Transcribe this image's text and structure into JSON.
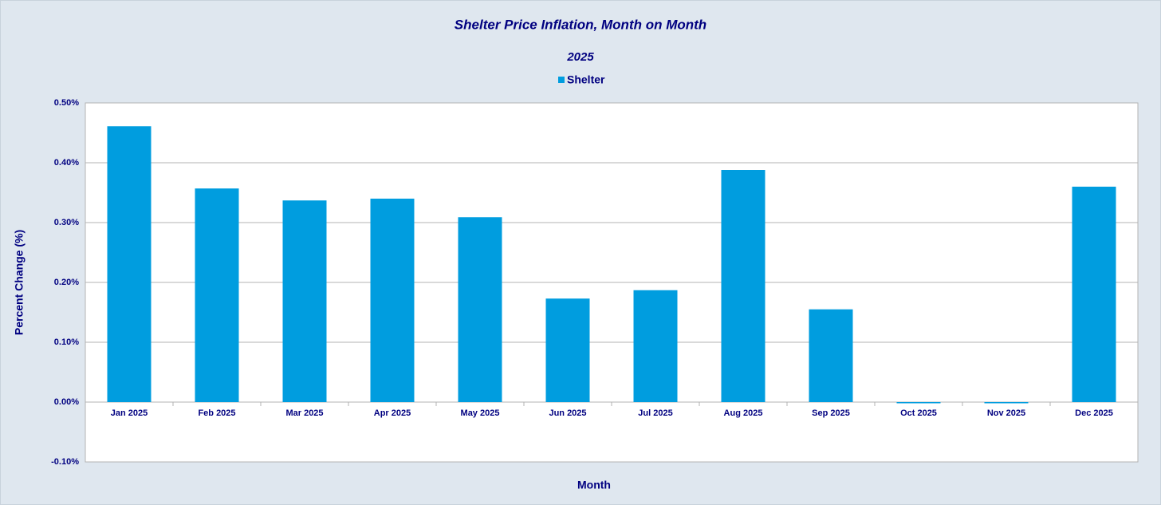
{
  "chart_data": {
    "type": "bar",
    "title": "Shelter Price Inflation, Month on Month",
    "subtitle": "2025",
    "x_label": "Month",
    "y_label": "Percent Change (%)",
    "categories": [
      "Jan 2025",
      "Feb 2025",
      "Mar 2025",
      "Apr 2025",
      "May 2025",
      "Jun 2025",
      "Jul 2025",
      "Aug 2025",
      "Sep 2025",
      "Oct 2025",
      "Nov 2025",
      "Dec 2025"
    ],
    "series": [
      {
        "name": "Shelter",
        "color": "#009ddf",
        "values": [
          0.461,
          0.357,
          0.337,
          0.34,
          0.309,
          0.173,
          0.187,
          0.388,
          0.155,
          -0.002,
          -0.002,
          0.36
        ]
      }
    ],
    "ylim": [
      -0.1,
      0.5
    ],
    "yticks": [
      {
        "value": -0.1,
        "label": "-0.10%"
      },
      {
        "value": 0,
        "label": "0.00%"
      },
      {
        "value": 0.1,
        "label": "0.10%"
      },
      {
        "value": 0.2,
        "label": "0.20%"
      },
      {
        "value": 0.3,
        "label": "0.30%"
      },
      {
        "value": 0.4,
        "label": "0.40%"
      },
      {
        "value": 0.5,
        "label": "0.50%"
      }
    ],
    "grid": true,
    "legend": "top"
  }
}
